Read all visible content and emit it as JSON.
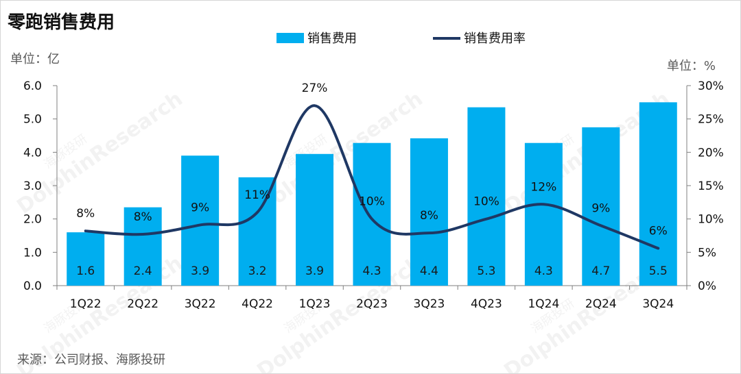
{
  "chart_data": {
    "type": "bar",
    "title": "零跑销售费用",
    "left_unit": "单位：亿",
    "right_unit": "单位：%",
    "source": "来源：公司财报、海豚投研",
    "watermark": [
      "海豚投研",
      "DolphinResearch"
    ],
    "categories": [
      "1Q22",
      "2Q22",
      "3Q22",
      "4Q22",
      "1Q23",
      "2Q23",
      "3Q23",
      "4Q23",
      "1Q24",
      "2Q24",
      "3Q24"
    ],
    "series": [
      {
        "name": "销售费用",
        "type": "bar",
        "axis": "left",
        "color": "#00AEEF",
        "values": [
          1.6,
          2.35,
          3.9,
          3.25,
          3.95,
          4.28,
          4.42,
          5.35,
          4.28,
          4.75,
          5.5
        ],
        "labels": [
          "1.6",
          "2.4",
          "3.9",
          "3.2",
          "3.9",
          "4.3",
          "4.4",
          "5.3",
          "4.3",
          "4.7",
          "5.5"
        ]
      },
      {
        "name": "销售费用率",
        "type": "line",
        "axis": "right",
        "color": "#1F3864",
        "values": [
          8.2,
          7.7,
          9.1,
          11.0,
          27.0,
          10.0,
          7.9,
          10.0,
          12.2,
          9.0,
          5.6
        ],
        "labels": [
          "8%",
          "8%",
          "9%",
          "11%",
          "27%",
          "10%",
          "8%",
          "10%",
          "12%",
          "9%",
          "6%"
        ]
      }
    ],
    "y_left": {
      "min": 0,
      "max": 6,
      "ticks": [
        "0.0",
        "1.0",
        "2.0",
        "3.0",
        "4.0",
        "5.0",
        "6.0"
      ]
    },
    "y_right": {
      "min": 0,
      "max": 30,
      "ticks": [
        "0%",
        "5%",
        "10%",
        "15%",
        "20%",
        "25%",
        "30%"
      ]
    },
    "grid": false,
    "legend_position": "top"
  }
}
